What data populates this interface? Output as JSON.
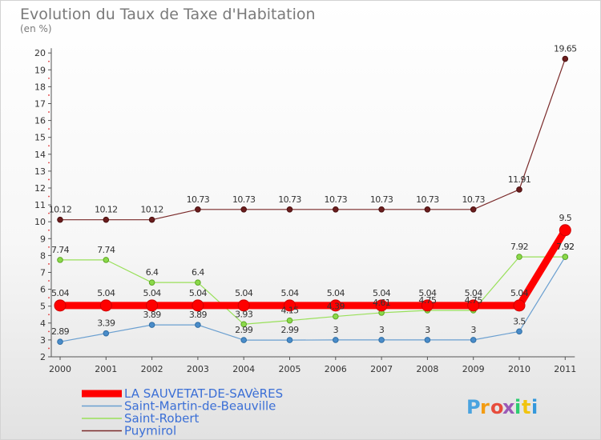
{
  "chart_data": {
    "type": "line",
    "title": "Evolution du Taux de Taxe d'Habitation",
    "subtitle": "(en %)",
    "categories": [
      "2000",
      "2001",
      "2002",
      "2003",
      "2004",
      "2005",
      "2006",
      "2007",
      "2008",
      "2009",
      "2010",
      "2011"
    ],
    "ylim": [
      2,
      20
    ],
    "yticks": [
      2,
      3,
      4,
      5,
      6,
      7,
      8,
      9,
      10,
      11,
      12,
      13,
      14,
      15,
      16,
      17,
      18,
      19,
      20
    ],
    "grid": false,
    "legend_position": "bottom-left",
    "series": [
      {
        "name": "LA SAUVETAT-DE-SAVèRES",
        "color": "#ff0000",
        "values": [
          5.04,
          5.04,
          5.04,
          5.04,
          5.04,
          5.04,
          5.04,
          5.04,
          5.04,
          5.04,
          5.04,
          9.5
        ],
        "labels": [
          "5.04",
          "5.04",
          "5.04",
          "5.04",
          "5.04",
          "5.04",
          "5.04",
          "5.04",
          "5.04",
          "5.04",
          "5.04",
          "9.5"
        ]
      },
      {
        "name": "Saint-Martin-de-Beauville",
        "color": "#6a9fd0",
        "values": [
          2.89,
          3.39,
          3.89,
          3.89,
          2.99,
          2.99,
          3,
          3,
          3,
          3,
          3.5,
          7.92
        ],
        "labels": [
          "2.89",
          "3.39",
          "3.89",
          "3.89",
          "2.99",
          "2.99",
          "3",
          "3",
          "3",
          "3",
          "3.5",
          "7.92"
        ]
      },
      {
        "name": "Saint-Robert",
        "color": "#99e05a",
        "values": [
          7.74,
          7.74,
          6.4,
          6.4,
          3.93,
          4.15,
          4.39,
          4.61,
          4.75,
          4.75,
          7.92,
          7.92
        ],
        "labels": [
          "7.74",
          "7.74",
          "6.4",
          "6.4",
          "3.93",
          "4.15",
          "4.39",
          "4.61",
          "4.75",
          "4.75",
          "7.92",
          "7.92"
        ]
      },
      {
        "name": "Puymirol",
        "color": "#7a2a2a",
        "values": [
          10.12,
          10.12,
          10.12,
          10.73,
          10.73,
          10.73,
          10.73,
          10.73,
          10.73,
          10.73,
          11.91,
          19.65
        ],
        "labels": [
          "10.12",
          "10.12",
          "10.12",
          "10.73",
          "10.73",
          "10.73",
          "10.73",
          "10.73",
          "10.73",
          "10.73",
          "11.91",
          "19.65"
        ]
      }
    ]
  },
  "logo": {
    "text": "Proxiti",
    "letter_colors": [
      "#4aa3df",
      "#f39c12",
      "#e74c3c",
      "#9b59b6",
      "#2ecc71",
      "#f1c40f",
      "#3498db"
    ]
  }
}
